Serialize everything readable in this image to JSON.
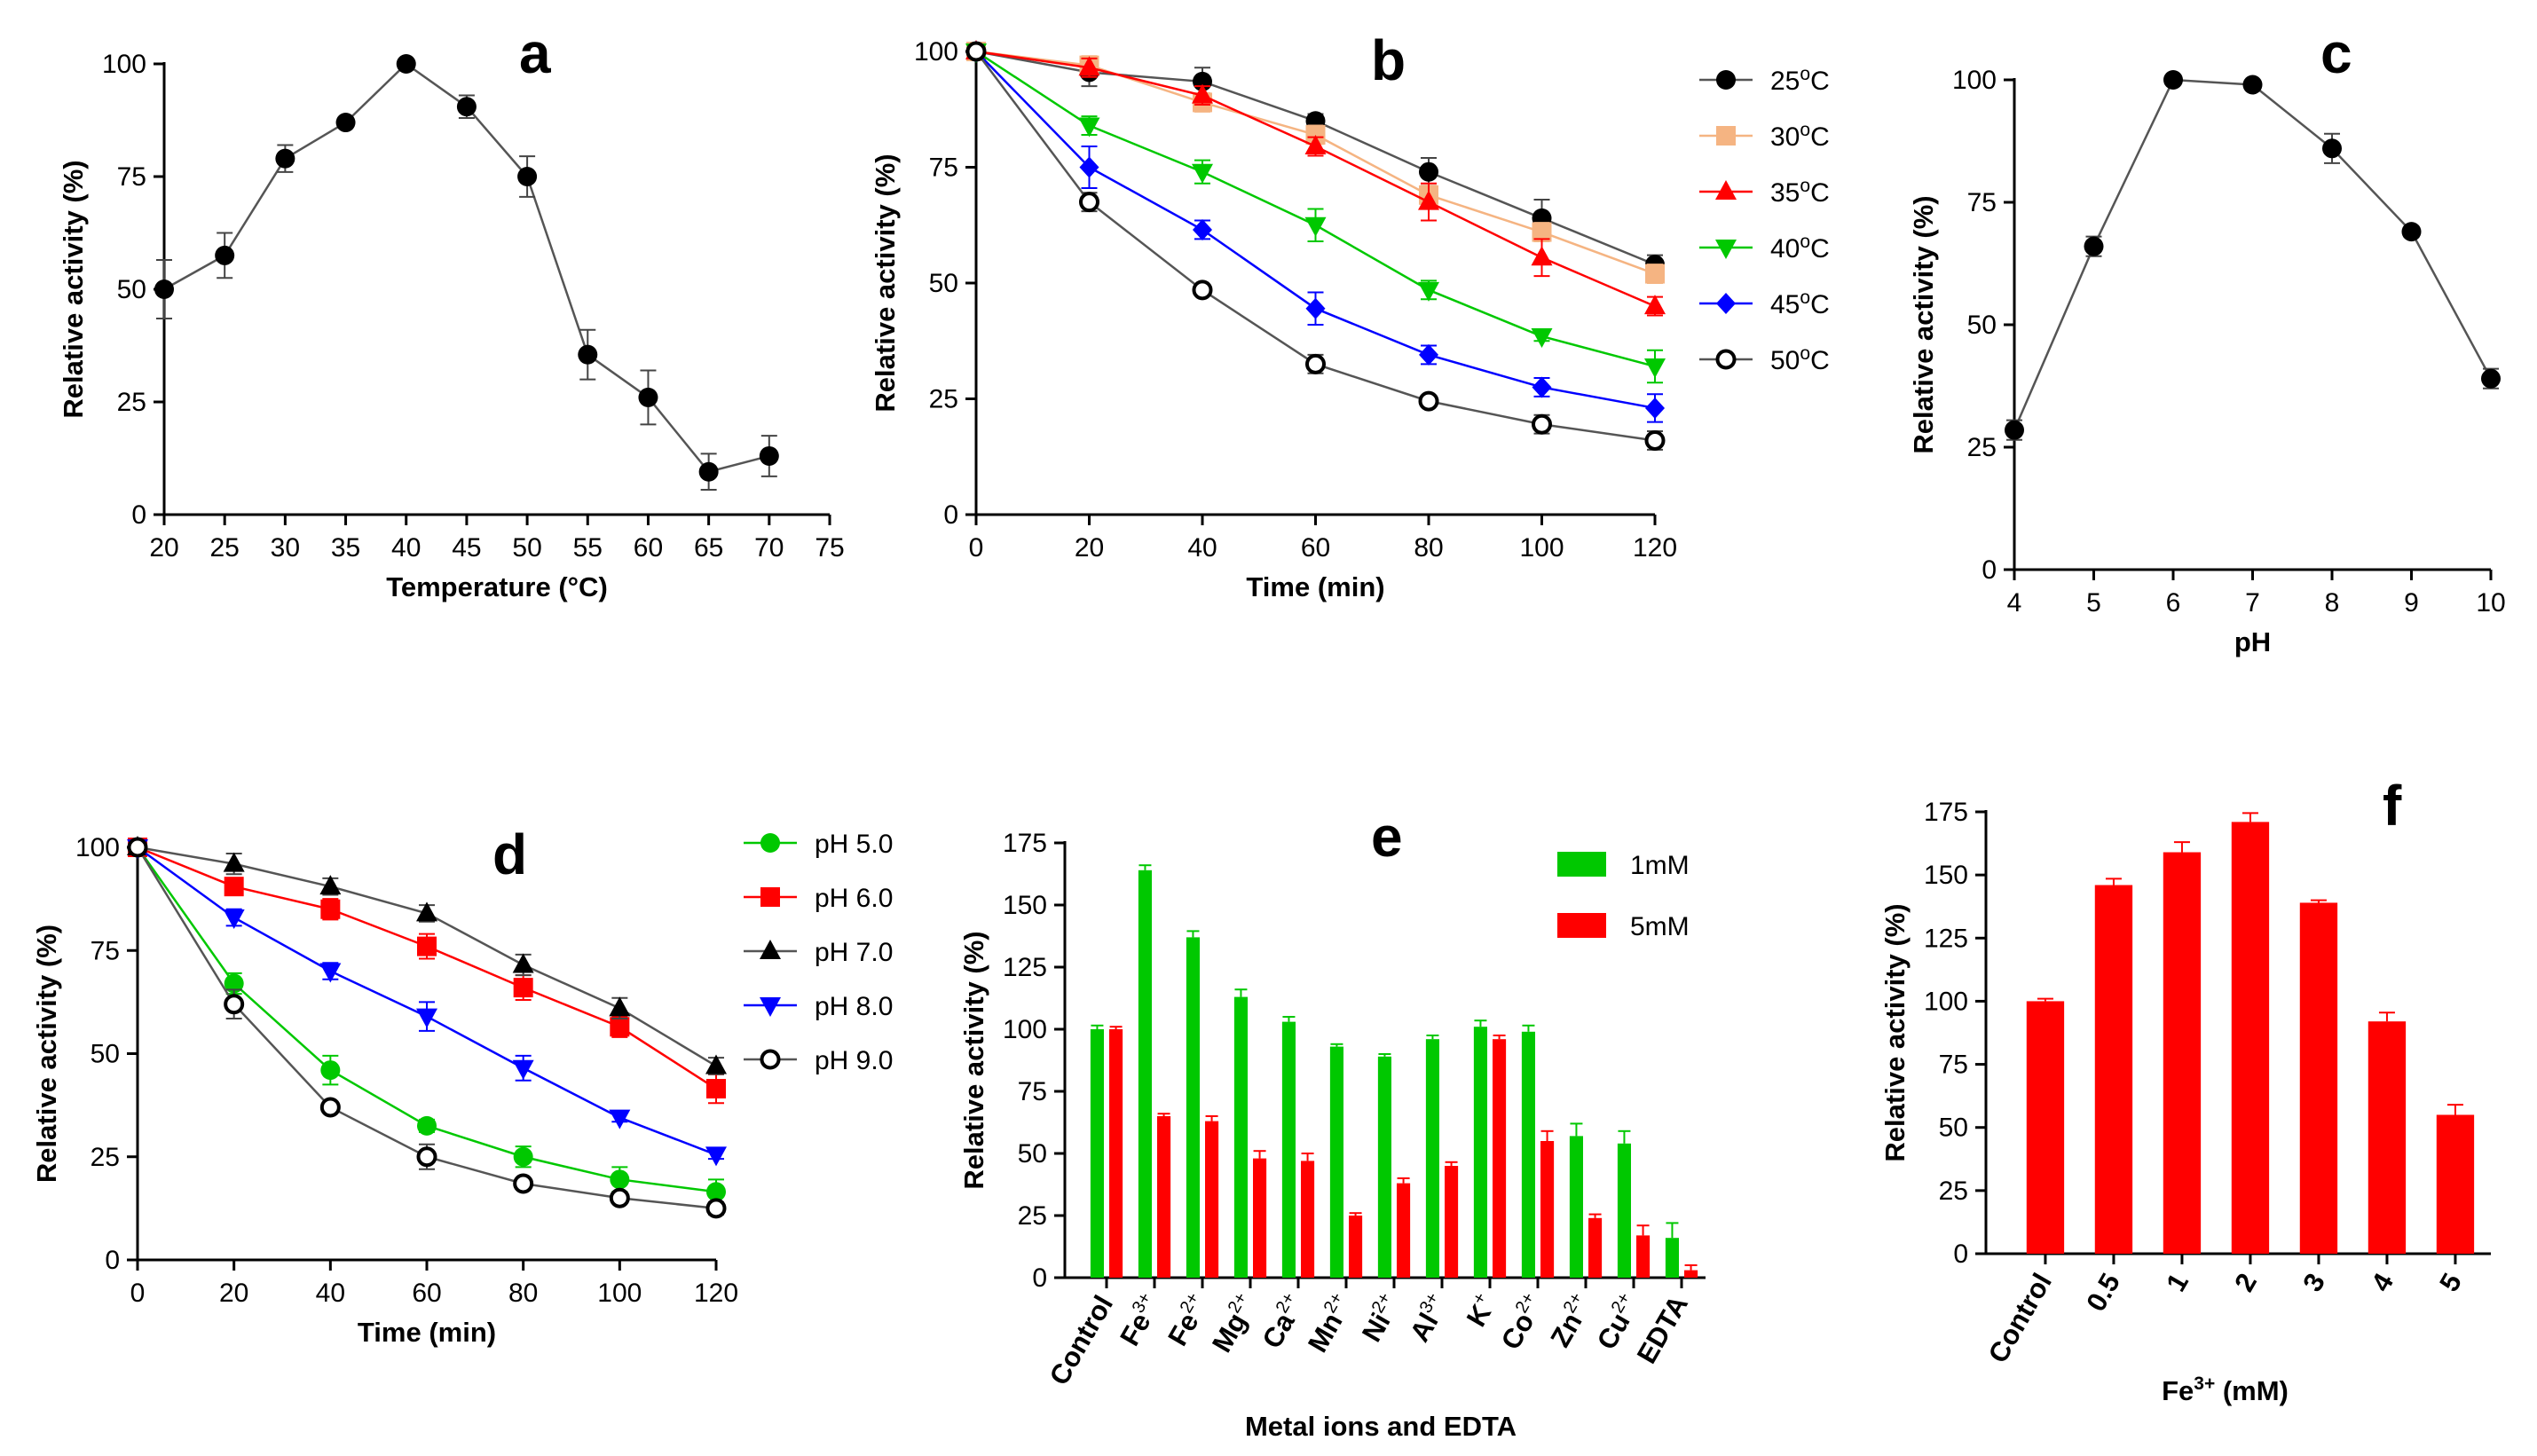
{
  "chart_data": [
    {
      "panel": "a",
      "type": "line",
      "xlabel": "Temperature (°C)",
      "ylabel": "Relative activity (%)",
      "xlim": [
        20,
        75
      ],
      "ylim": [
        0,
        100
      ],
      "xticks": [
        20,
        25,
        30,
        35,
        40,
        45,
        50,
        55,
        60,
        65,
        70,
        75
      ],
      "yticks": [
        0,
        25,
        50,
        75,
        100
      ],
      "series": [
        {
          "name": "activity",
          "color": "#000000",
          "marker": "circle",
          "x": [
            20,
            25,
            30,
            35,
            40,
            45,
            50,
            55,
            60,
            65,
            70
          ],
          "values": [
            50,
            57.5,
            79,
            87,
            100,
            90.5,
            75,
            35.5,
            26,
            9.5,
            13
          ],
          "errors": [
            6.5,
            5,
            3,
            1,
            0,
            2.5,
            4.5,
            5.5,
            6,
            4,
            4.5
          ]
        }
      ]
    },
    {
      "panel": "b",
      "type": "line",
      "xlabel": "Time (min)",
      "ylabel": "Relative activity (%)",
      "xlim": [
        0,
        120
      ],
      "ylim": [
        0,
        100
      ],
      "xticks": [
        0,
        20,
        40,
        60,
        80,
        100,
        120
      ],
      "yticks": [
        0,
        25,
        50,
        75,
        100
      ],
      "legend": "right",
      "series": [
        {
          "name": "25",
          "unit": "°C",
          "color": "#000000",
          "marker": "circle",
          "x": [
            0,
            20,
            40,
            60,
            80,
            100,
            120
          ],
          "values": [
            100,
            95.5,
            93.5,
            85,
            74,
            64,
            54
          ],
          "errors": [
            0,
            3,
            3,
            1.5,
            3,
            4,
            2
          ]
        },
        {
          "name": "30",
          "unit": "°C",
          "color": "#f5b482",
          "marker": "square",
          "x": [
            0,
            20,
            40,
            60,
            80,
            100,
            120
          ],
          "values": [
            100,
            97,
            89,
            82,
            69,
            61,
            52
          ],
          "errors": [
            0,
            2,
            2,
            2,
            2,
            2,
            2
          ]
        },
        {
          "name": "35",
          "unit": "°C",
          "color": "#ff0000",
          "marker": "triangle-up",
          "x": [
            0,
            20,
            40,
            60,
            80,
            100,
            120
          ],
          "values": [
            100,
            96.5,
            90.5,
            79.5,
            67.5,
            55.5,
            45
          ],
          "errors": [
            0,
            2,
            2,
            2,
            4,
            4,
            2
          ]
        },
        {
          "name": "40",
          "unit": "°C",
          "color": "#00c800",
          "marker": "triangle-down",
          "x": [
            0,
            20,
            40,
            60,
            80,
            100,
            120
          ],
          "values": [
            100,
            84,
            74,
            62.5,
            48.5,
            38.5,
            32
          ],
          "errors": [
            0,
            2,
            2.5,
            3.5,
            2,
            1,
            3.5
          ]
        },
        {
          "name": "45",
          "unit": "°C",
          "color": "#0000ff",
          "marker": "diamond",
          "x": [
            0,
            20,
            40,
            60,
            80,
            100,
            120
          ],
          "values": [
            100,
            75,
            61.5,
            44.5,
            34.5,
            27.5,
            23
          ],
          "errors": [
            0,
            4.5,
            2,
            3.5,
            2,
            2,
            3
          ]
        },
        {
          "name": "50",
          "unit": "°C",
          "color": "#000000",
          "marker": "open-circle",
          "x": [
            0,
            20,
            40,
            60,
            80,
            100,
            120
          ],
          "values": [
            100,
            67.5,
            48.5,
            32.5,
            24.5,
            19.5,
            16
          ],
          "errors": [
            0,
            2,
            1,
            2,
            1,
            2,
            2
          ]
        }
      ]
    },
    {
      "panel": "c",
      "type": "line",
      "xlabel": "pH",
      "ylabel": "Relative activity (%)",
      "xlim": [
        4,
        10
      ],
      "ylim": [
        0,
        100
      ],
      "xticks": [
        4,
        5,
        6,
        7,
        8,
        9,
        10
      ],
      "yticks": [
        0,
        25,
        50,
        75,
        100
      ],
      "series": [
        {
          "name": "activity",
          "color": "#000000",
          "marker": "circle",
          "x": [
            4,
            5,
            6,
            7,
            8,
            9,
            10
          ],
          "values": [
            28.5,
            66,
            100,
            99,
            86,
            69,
            39
          ],
          "errors": [
            2,
            2,
            0,
            0.5,
            3,
            1,
            2
          ]
        }
      ]
    },
    {
      "panel": "d",
      "type": "line",
      "xlabel": "Time (min)",
      "ylabel": "Relative activity (%)",
      "xlim": [
        0,
        120
      ],
      "ylim": [
        0,
        100
      ],
      "xticks": [
        0,
        20,
        40,
        60,
        80,
        100,
        120
      ],
      "yticks": [
        0,
        25,
        50,
        75,
        100
      ],
      "legend": "right",
      "series": [
        {
          "name": "pH 5.0",
          "color": "#00c800",
          "marker": "circle",
          "x": [
            0,
            20,
            40,
            60,
            80,
            100,
            120
          ],
          "values": [
            100,
            67,
            46,
            32.5,
            25,
            19.5,
            16.5
          ],
          "errors": [
            0,
            2.5,
            3.5,
            1.5,
            2.5,
            3,
            3
          ]
        },
        {
          "name": "pH 6.0",
          "color": "#ff0000",
          "marker": "square",
          "x": [
            0,
            20,
            40,
            60,
            80,
            100,
            120
          ],
          "values": [
            100,
            90.5,
            85,
            76,
            66,
            56.5,
            41.5
          ],
          "errors": [
            0,
            2,
            2.5,
            3,
            3,
            2.5,
            3.5
          ]
        },
        {
          "name": "pH 7.0",
          "color": "#000000",
          "marker": "triangle-up",
          "x": [
            0,
            20,
            40,
            60,
            80,
            100,
            120
          ],
          "values": [
            100,
            96,
            90.5,
            84,
            71.5,
            61,
            47
          ],
          "errors": [
            0,
            2.5,
            2,
            2,
            2.5,
            2.5,
            2
          ]
        },
        {
          "name": "pH 8.0",
          "color": "#0000ff",
          "marker": "triangle-down",
          "x": [
            0,
            20,
            40,
            60,
            80,
            100,
            120
          ],
          "values": [
            100,
            83,
            70,
            59,
            46.5,
            34.5,
            25.5
          ],
          "errors": [
            0,
            2,
            2,
            3.5,
            3,
            1,
            1
          ]
        },
        {
          "name": "pH 9.0",
          "color": "#000000",
          "marker": "open-circle",
          "x": [
            0,
            20,
            40,
            60,
            80,
            100,
            120
          ],
          "values": [
            100,
            62,
            37,
            25,
            18.5,
            15,
            12.5
          ],
          "errors": [
            0,
            3.5,
            1,
            3,
            1,
            1,
            1.5
          ]
        }
      ]
    },
    {
      "panel": "e",
      "type": "bar",
      "xlabel": "Metal ions and EDTA",
      "ylabel": "Relative activity (%)",
      "ylim": [
        0,
        175
      ],
      "yticks": [
        0,
        25,
        50,
        75,
        100,
        125,
        150,
        175
      ],
      "legend": "top-right",
      "categories": [
        {
          "base": "Control",
          "sup": ""
        },
        {
          "base": "Fe",
          "sup": "3+"
        },
        {
          "base": "Fe",
          "sup": "2+"
        },
        {
          "base": "Mg",
          "sup": "2+"
        },
        {
          "base": "Ca",
          "sup": "2+"
        },
        {
          "base": "Mn",
          "sup": "2+"
        },
        {
          "base": "Ni",
          "sup": "2+"
        },
        {
          "base": "Al",
          "sup": "3+"
        },
        {
          "base": "K",
          "sup": "+"
        },
        {
          "base": "Co",
          "sup": "2+"
        },
        {
          "base": "Zn",
          "sup": "2+"
        },
        {
          "base": "Cu",
          "sup": "2+"
        },
        {
          "base": "EDTA",
          "sup": ""
        }
      ],
      "series": [
        {
          "name": "1mM",
          "color": "#00c800",
          "values": [
            100,
            164,
            137,
            113,
            103,
            93,
            89,
            96,
            101,
            99,
            57,
            54,
            16
          ],
          "errors": [
            1.5,
            2,
            2.5,
            3,
            2,
            1,
            1,
            1.5,
            2.5,
            2.5,
            5,
            5,
            6
          ]
        },
        {
          "name": "5mM",
          "color": "#ff0000",
          "values": [
            100,
            65,
            63,
            48,
            47,
            25,
            38,
            45,
            96,
            55,
            24,
            17,
            3
          ],
          "errors": [
            1,
            1,
            2,
            3,
            3,
            1,
            2,
            1.5,
            1.5,
            4,
            1.5,
            4,
            2
          ]
        }
      ]
    },
    {
      "panel": "f",
      "type": "bar",
      "xlabel": "Fe",
      "xlabel_sup": "3+",
      "xlabel_suffix": " (mM)",
      "ylabel": "Relative activity (%)",
      "ylim": [
        0,
        175
      ],
      "yticks": [
        0,
        25,
        50,
        75,
        100,
        125,
        150,
        175
      ],
      "categories": [
        "Control",
        "0.5",
        "1",
        "2",
        "3",
        "4",
        "5"
      ],
      "series": [
        {
          "name": "Fe3+",
          "color": "#ff0000",
          "values": [
            100,
            146,
            159,
            171,
            139,
            92,
            55
          ],
          "errors": [
            1,
            2.5,
            4,
            3.5,
            1,
            3.5,
            4
          ]
        }
      ]
    }
  ]
}
